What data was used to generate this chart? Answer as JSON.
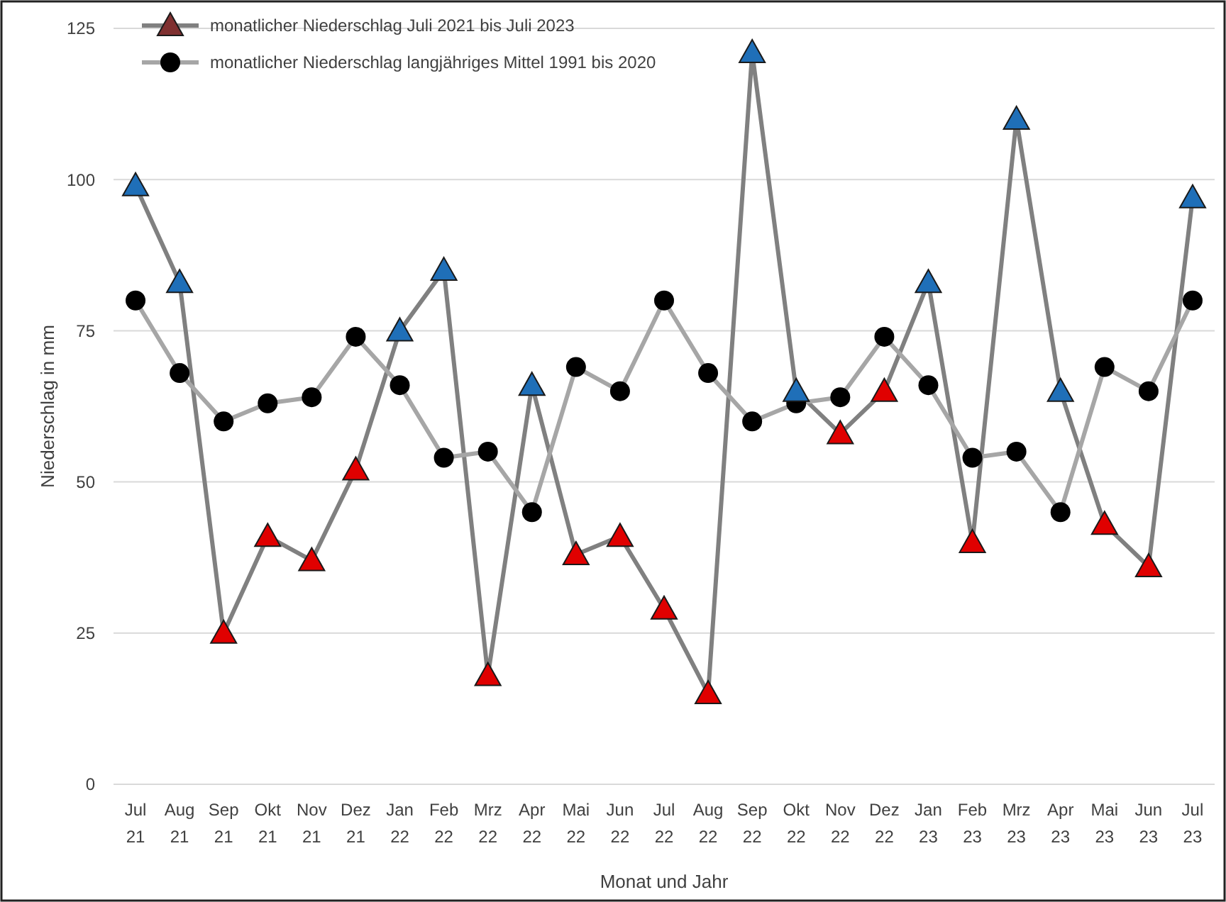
{
  "chart_data": {
    "type": "line",
    "ylabel": "Niederschlag in mm",
    "xlabel": "Monat und Jahr",
    "categories": [
      "Jul 21",
      "Aug 21",
      "Sep 21",
      "Okt 21",
      "Nov 21",
      "Dez 21",
      "Jan 22",
      "Feb 22",
      "Mrz 22",
      "Apr 22",
      "Mai 22",
      "Jun 22",
      "Jul 22",
      "Aug 22",
      "Sep 22",
      "Okt 22",
      "Nov 22",
      "Dez 22",
      "Jan 23",
      "Feb 23",
      "Mrz 23",
      "Apr 23",
      "Mai 23",
      "Jun 23",
      "Jul 23"
    ],
    "series": [
      {
        "name": "monatlicher Niederschlag Juli 2021 bis Juli 2023",
        "color": "#808080",
        "marker": "triangle",
        "values": [
          99,
          83,
          25,
          41,
          37,
          52,
          75,
          85,
          18,
          66,
          38,
          41,
          29,
          15,
          121,
          65,
          58,
          65,
          83,
          40,
          110,
          65,
          43,
          36,
          97
        ],
        "colors": [
          "#1f6fb8",
          "#1f6fb8",
          "#e00000",
          "#e00000",
          "#e00000",
          "#e00000",
          "#1f6fb8",
          "#1f6fb8",
          "#e00000",
          "#1f6fb8",
          "#e00000",
          "#e00000",
          "#e00000",
          "#e00000",
          "#1f6fb8",
          "#1f6fb8",
          "#e00000",
          "#e00000",
          "#1f6fb8",
          "#e00000",
          "#1f6fb8",
          "#1f6fb8",
          "#e00000",
          "#e00000",
          "#1f6fb8"
        ]
      },
      {
        "name": "monatlicher Niederschlag langjähriges Mittel 1991 bis 2020",
        "color": "#a6a6a6",
        "marker": "circle",
        "values": [
          80,
          68,
          60,
          63,
          64,
          74,
          66,
          54,
          55,
          45,
          69,
          65,
          80,
          68,
          60,
          63,
          64,
          74,
          66,
          54,
          55,
          45,
          69,
          65,
          80
        ]
      }
    ],
    "ylim": [
      0,
      125
    ],
    "yticks": [
      0,
      25,
      50,
      75,
      100,
      125
    ],
    "grid": "y",
    "legend": "top left"
  }
}
